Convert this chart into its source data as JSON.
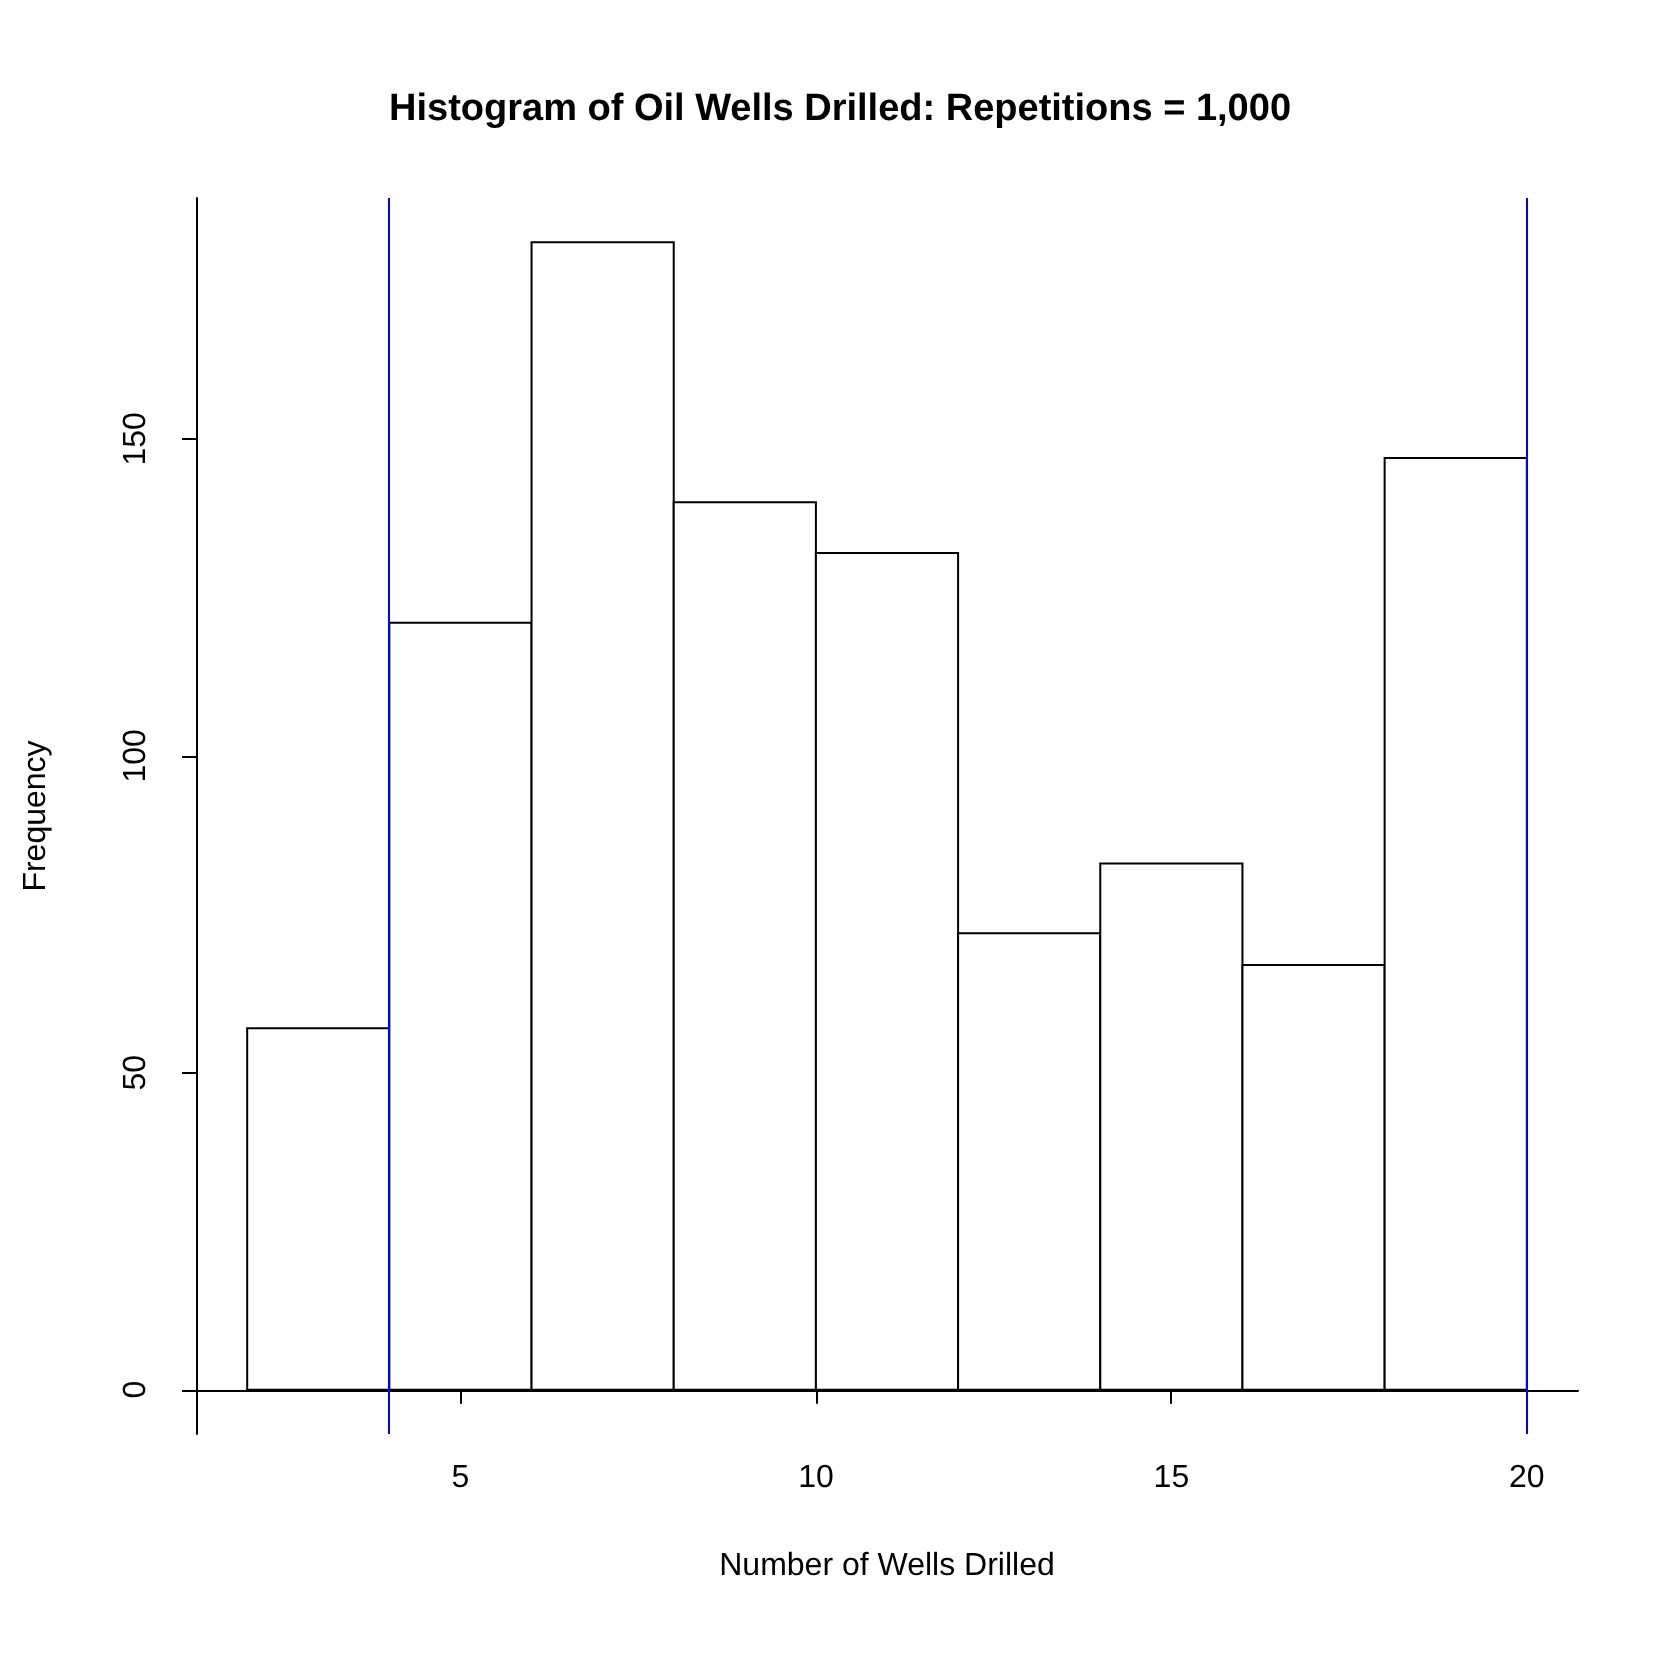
{
  "chart_data": {
    "type": "histogram",
    "title": "Histogram of Oil Wells Drilled: Repetitions = 1,000",
    "xlabel": "Number of Wells Drilled",
    "ylabel": "Frequency",
    "bins": [
      2,
      4,
      6,
      8,
      10,
      12,
      14,
      16,
      18,
      20
    ],
    "values": [
      57,
      121,
      181,
      140,
      132,
      72,
      83,
      67,
      147
    ],
    "color": "#ffffff",
    "xlim": [
      1.28,
      20.72
    ],
    "ylim": [
      -7,
      188
    ],
    "xticks": [
      5,
      10,
      15,
      20
    ],
    "yticks": [
      0,
      50,
      100,
      150
    ],
    "grid": false,
    "ref_lines": [
      {
        "axis": "x",
        "value": 4,
        "color": "#0000ff"
      },
      {
        "axis": "x",
        "value": 20,
        "color": "#0000ff"
      }
    ]
  }
}
